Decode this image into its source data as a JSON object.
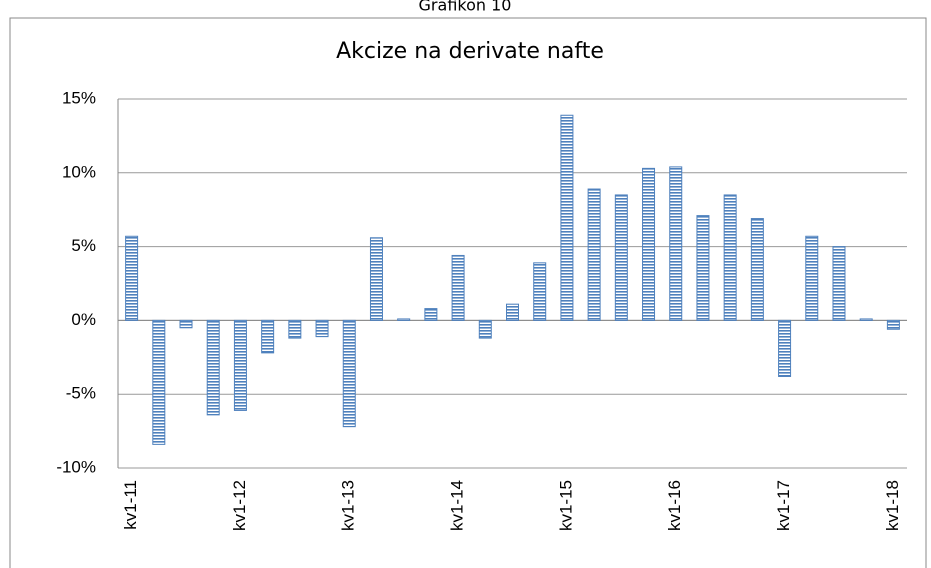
{
  "heading": "Grafikon 10",
  "chart_data": {
    "type": "bar",
    "title": "Akcize na derivate nafte",
    "categories": [
      "kv1-11",
      null,
      null,
      null,
      "kv1-12",
      null,
      null,
      null,
      "kv1-13",
      null,
      null,
      null,
      "kv1-14",
      null,
      null,
      null,
      "kv1-15",
      null,
      null,
      null,
      "kv1-16",
      null,
      null,
      null,
      "kv1-17",
      null,
      null,
      null,
      "kv1-18"
    ],
    "values": [
      5.7,
      -8.4,
      -0.5,
      -6.4,
      -6.1,
      -2.2,
      -1.2,
      -1.1,
      -7.2,
      5.6,
      0.1,
      0.8,
      4.4,
      -1.2,
      1.1,
      3.9,
      13.9,
      8.9,
      8.5,
      10.3,
      10.4,
      7.1,
      8.5,
      6.9,
      -3.8,
      5.7,
      5.0,
      0.1,
      -0.6
    ],
    "color": "#4f81bd",
    "ylim": [
      -10,
      15
    ],
    "yticks": [
      {
        "value": -10,
        "label": "-10%"
      },
      {
        "value": -5,
        "label": "-5%"
      },
      {
        "value": 0,
        "label": "0%"
      },
      {
        "value": 5,
        "label": "5%"
      },
      {
        "value": 10,
        "label": "10%"
      },
      {
        "value": 15,
        "label": "15%"
      }
    ],
    "grid": true
  }
}
